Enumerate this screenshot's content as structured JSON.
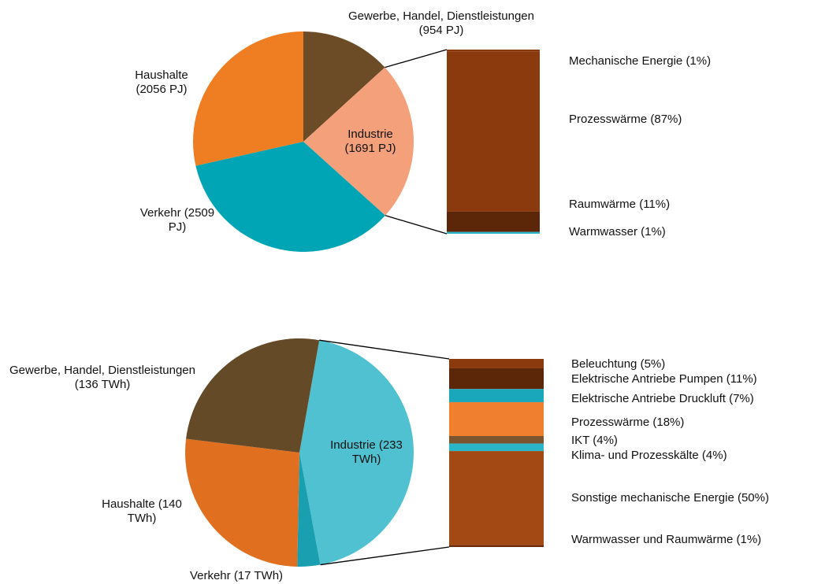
{
  "chart_data": [
    {
      "type": "pie",
      "categories": [
        "Gewerbe, Handel, Dienstleistungen",
        "Industrie",
        "Verkehr",
        "Haushalte"
      ],
      "values": [
        954,
        1691,
        2509,
        2056
      ],
      "value_labels": [
        "(954 PJ)",
        "(1691 PJ)",
        "(2509 PJ)",
        "(2056 PJ)"
      ],
      "colors": [
        "#6b4c26",
        "#f4a07a",
        "#00a5b5",
        "#ef7d22"
      ],
      "breakdown": {
        "type": "bar",
        "categories": [
          "Mechanische Energie",
          "Prozesswärme",
          "Raumwärme",
          "Warmwasser"
        ],
        "values": [
          1,
          87,
          11,
          1
        ],
        "value_labels": [
          "(1%)",
          "(87%)",
          "(11%)",
          "(1%)"
        ],
        "colors": [
          "#8b3a0e",
          "#8b3a0e",
          "#5c2608",
          "#2bb5c8"
        ]
      }
    },
    {
      "type": "pie",
      "categories": [
        "Industrie",
        "Verkehr",
        "Haushalte",
        "Gewerbe, Handel, Dienstleistungen"
      ],
      "values": [
        233,
        17,
        140,
        136
      ],
      "value_labels": [
        "(233 TWh)",
        "(17 TWh)",
        "(140 TWh)",
        "(136 TWh)"
      ],
      "colors": [
        "#4fc1d0",
        "#1a9fb0",
        "#e07020",
        "#654a28"
      ],
      "breakdown": {
        "type": "bar",
        "categories": [
          "Beleuchtung",
          "Elektrische Antriebe Pumpen",
          "Elektrische Antriebe Druckluft",
          "Prozesswärme",
          "IKT",
          "Klima- und Prozesskälte",
          "Sonstige mechanische Energie",
          "Warmwasser und Raumwärme"
        ],
        "values": [
          5,
          11,
          7,
          18,
          4,
          4,
          50,
          1
        ],
        "value_labels": [
          "(5%)",
          "(11%)",
          "(7%)",
          "(18%)",
          "(4%)",
          "(4%)",
          "(50%)",
          "(1%)"
        ],
        "colors": [
          "#8b3a0e",
          "#5c2608",
          "#1aa7bc",
          "#f08030",
          "#7a5530",
          "#2bb5c8",
          "#a34a14",
          "#6b2a08"
        ]
      }
    }
  ]
}
